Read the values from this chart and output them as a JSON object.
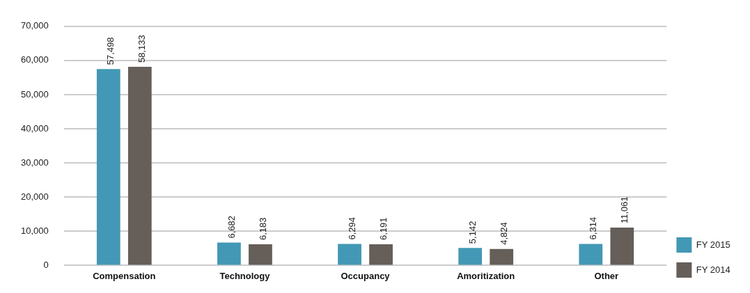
{
  "chart_data": {
    "type": "bar",
    "categories": [
      "Compensation",
      "Technology",
      "Occupancy",
      "Amoritization",
      "Other"
    ],
    "series": [
      {
        "name": "FY 2015",
        "color": "#4398b5",
        "values": [
          57498,
          6682,
          6294,
          5142,
          6314
        ],
        "value_labels": [
          "57,498",
          "6,682",
          "6,294",
          "5,142",
          "6,314"
        ]
      },
      {
        "name": "FY 2014",
        "color": "#655e59",
        "values": [
          58133,
          6183,
          6191,
          4824,
          11061
        ],
        "value_labels": [
          "58,133",
          "6,183",
          "6,191",
          "4,824",
          "11,061"
        ]
      }
    ],
    "ylim": [
      0,
      70000
    ],
    "yticks": [
      {
        "value": 0,
        "label": "0"
      },
      {
        "value": 10000,
        "label": "10,000"
      },
      {
        "value": 20000,
        "label": "20,000"
      },
      {
        "value": 30000,
        "label": "30,000"
      },
      {
        "value": 40000,
        "label": "40,000"
      },
      {
        "value": 50000,
        "label": "50,000"
      },
      {
        "value": 60000,
        "label": "60,000"
      },
      {
        "value": 70000,
        "label": "70,000"
      }
    ],
    "grid": "y",
    "legend": "bottom right"
  }
}
